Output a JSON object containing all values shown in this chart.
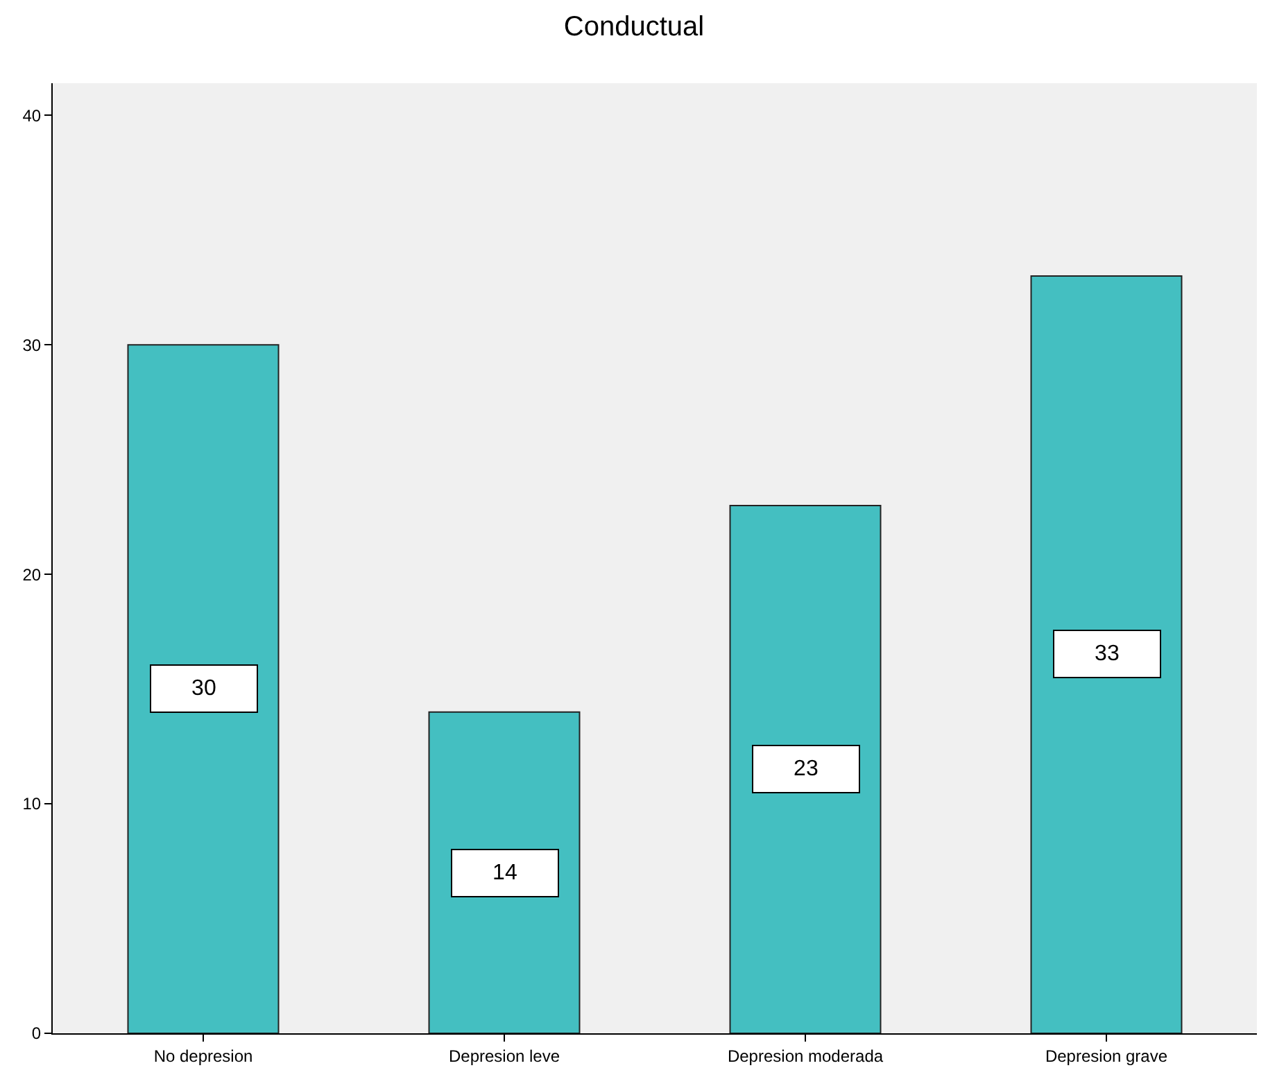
{
  "chart_data": {
    "type": "bar",
    "title": "Conductual",
    "categories": [
      "No depresion",
      "Depresion leve",
      "Depresion moderada",
      "Depresion grave"
    ],
    "values": [
      30,
      14,
      23,
      33
    ],
    "data_labels": true,
    "color": "#44bfc1",
    "ylim": [
      0,
      41.4
    ],
    "yticks": [
      0,
      10,
      20,
      30,
      40
    ],
    "grid": false,
    "legend": false
  }
}
